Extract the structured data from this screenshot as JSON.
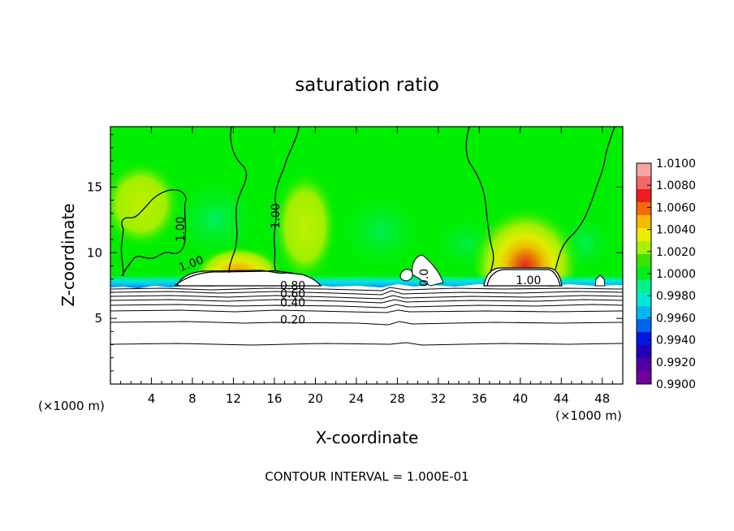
{
  "chart_data": {
    "type": "heatmap",
    "title": "saturation ratio",
    "xlabel": "X-coordinate",
    "ylabel": "Z-coordinate",
    "x_unit_label": "(×1000 m)",
    "y_unit_label": "(×1000 m)",
    "xlim": [
      0,
      50
    ],
    "ylim": [
      0,
      19.6
    ],
    "x_ticks": [
      4,
      8,
      12,
      16,
      20,
      24,
      28,
      32,
      36,
      40,
      44,
      48
    ],
    "y_ticks": [
      5,
      10,
      15
    ],
    "footer": "CONTOUR INTERVAL = 1.000E-01",
    "colorbar": {
      "ticks": [
        "1.0100",
        "1.0080",
        "1.0060",
        "1.0040",
        "1.0020",
        "1.0000",
        "0.9980",
        "0.9960",
        "0.9940",
        "0.9920",
        "0.9900"
      ],
      "colors": [
        "#f4a6a6",
        "#f26868",
        "#ee1c1c",
        "#f46a0a",
        "#f8b800",
        "#ecec00",
        "#a8f000",
        "#38e400",
        "#00ee20",
        "#00f08c",
        "#00e8d8",
        "#00b8f4",
        "#0064f0",
        "#0018e0",
        "#2000b8",
        "#5000a8",
        "#7000a0"
      ]
    },
    "background_color": "#00ee00",
    "hotspots": [
      {
        "x": 40.5,
        "z": 9.2,
        "peak": 1.008
      },
      {
        "x": 12.5,
        "z": 8.9,
        "peak": 1.004
      },
      {
        "x": 3.0,
        "z": 12.5,
        "peak": 1.002
      },
      {
        "x": 19.0,
        "z": 10.5,
        "peak": 1.001
      }
    ],
    "contour_labels": [
      {
        "text": "1.00",
        "x": 7.2,
        "z": 11.8,
        "angle": -90
      },
      {
        "text": "1.00",
        "x": 16.5,
        "z": 12.8,
        "angle": -90
      },
      {
        "text": "1.00",
        "x": 8.0,
        "z": 8.9,
        "angle": -20
      },
      {
        "text": "1.00",
        "x": 40.8,
        "z": 7.6,
        "angle": 0
      },
      {
        "text": "0.80",
        "x": 17.8,
        "z": 7.2,
        "angle": 0
      },
      {
        "text": "0.60",
        "x": 17.8,
        "z": 6.6,
        "angle": 0
      },
      {
        "text": "0.40",
        "x": 17.8,
        "z": 5.9,
        "angle": 0
      },
      {
        "text": "0.20",
        "x": 17.8,
        "z": 4.6,
        "angle": 0
      },
      {
        "text": "0.0",
        "x": 31.0,
        "z": 8.1,
        "angle": -90
      }
    ]
  }
}
